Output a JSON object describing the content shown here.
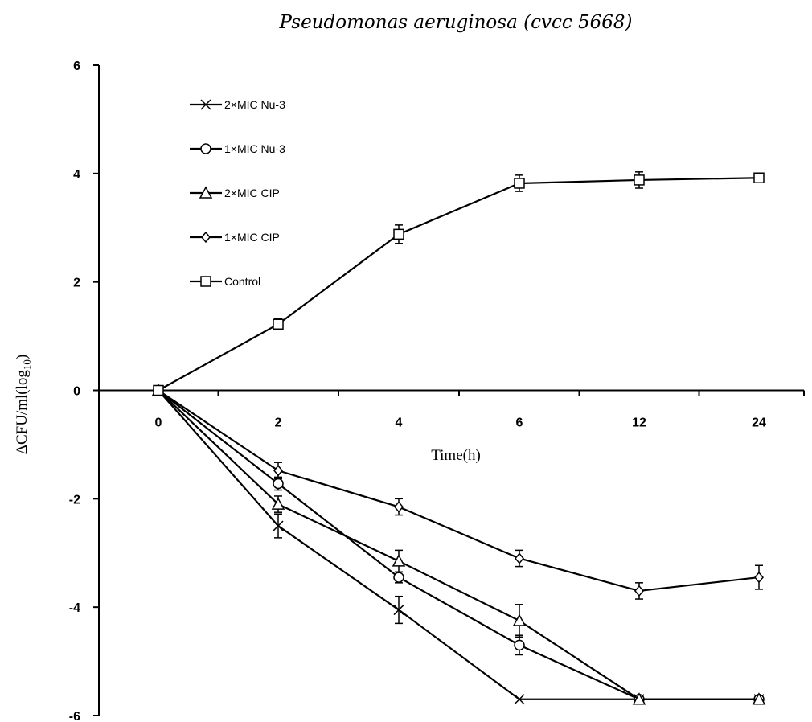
{
  "chart_data": {
    "type": "line",
    "title": "Pseudomonas aeruginosa (cvcc 5668)",
    "xlabel": "Time(h)",
    "ylabel": "ΔCFU/ml(log",
    "ylabel_subscript": "10",
    "ylabel_suffix": ")",
    "categories": [
      "0",
      "2",
      "4",
      "6",
      "12",
      "24"
    ],
    "ylim": [
      -6,
      6
    ],
    "yticks": [
      "6",
      "4",
      "2",
      "0",
      "-2",
      "-4",
      "-6"
    ],
    "grid": false,
    "legend_position": "top-left",
    "series": [
      {
        "name": "2×MIC Nu-3",
        "marker": "cross",
        "values": [
          0,
          -2.5,
          -4.05,
          -5.7,
          -5.7,
          -5.7
        ],
        "errors": [
          0,
          0.22,
          0.25,
          0,
          0,
          0
        ]
      },
      {
        "name": "1×MIC Nu-3",
        "marker": "circle",
        "values": [
          0,
          -1.72,
          -3.45,
          -4.7,
          -5.7,
          -5.7
        ],
        "errors": [
          0,
          0.12,
          0.1,
          0.18,
          0,
          0
        ]
      },
      {
        "name": "2×MIC CIP",
        "marker": "triangle",
        "values": [
          0,
          -2.1,
          -3.15,
          -4.25,
          -5.7,
          -5.7
        ],
        "errors": [
          0,
          0.15,
          0.2,
          0.3,
          0,
          0
        ]
      },
      {
        "name": "1×MIC CIP",
        "marker": "diamond",
        "values": [
          0,
          -1.48,
          -2.15,
          -3.1,
          -3.7,
          -3.45
        ],
        "errors": [
          0,
          0.15,
          0.15,
          0.15,
          0.15,
          0.22
        ]
      },
      {
        "name": "Control",
        "marker": "square",
        "values": [
          0,
          1.22,
          2.88,
          3.82,
          3.88,
          3.92
        ],
        "errors": [
          0,
          0.1,
          0.17,
          0.15,
          0.15,
          0.07
        ]
      }
    ]
  }
}
